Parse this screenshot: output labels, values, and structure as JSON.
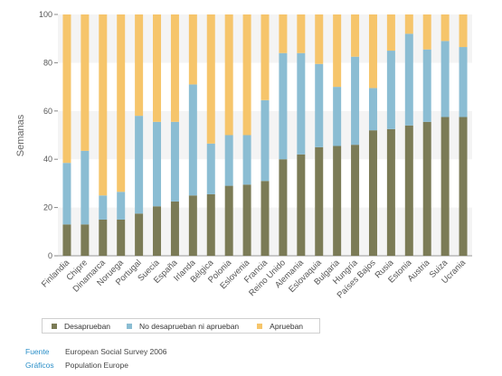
{
  "chart_data": {
    "type": "bar",
    "stacked": true,
    "ylabel": "Semanas",
    "ylim": [
      0,
      100
    ],
    "yticks": [
      0,
      20,
      40,
      60,
      80,
      100
    ],
    "categories": [
      "Finlandia",
      "Chipre",
      "Dinamarca",
      "Noruega",
      "Portugal",
      "Suecia",
      "España",
      "Irlanda",
      "Bélgica",
      "Polonia",
      "Eslovenia",
      "Francia",
      "Reino Unido",
      "Alemania",
      "Eslovaquia",
      "Bulgaria",
      "Hungría",
      "Países Bajos",
      "Rusia",
      "Estonia",
      "Austria",
      "Suiza",
      "Ucrania"
    ],
    "series": [
      {
        "name": "Desaprueban",
        "color": "#7b7b56",
        "values": [
          13,
          13,
          15,
          15,
          17.5,
          20.5,
          22.5,
          25,
          25.5,
          29,
          29.5,
          31,
          40,
          42,
          45,
          45.5,
          46,
          52,
          52.5,
          54,
          55.5,
          57.5,
          57.5
        ]
      },
      {
        "name": "No desaprueban ni aprueban",
        "color": "#8bbdd3",
        "values": [
          25.5,
          30.5,
          10,
          11.5,
          40.5,
          35,
          33,
          46,
          21,
          21,
          20.5,
          33.5,
          44,
          42,
          34.5,
          24.5,
          36.5,
          17.5,
          32.5,
          38,
          30,
          31.5,
          29
        ]
      },
      {
        "name": "Aprueban",
        "color": "#f6c56b",
        "values": [
          61.5,
          56.5,
          75,
          73.5,
          42,
          44.5,
          44.5,
          29,
          53.5,
          50,
          50,
          35.5,
          16,
          16,
          20.5,
          30,
          17.5,
          30.5,
          15,
          8,
          14.5,
          11,
          13.5
        ]
      }
    ],
    "legend_position": "bottom",
    "grid": "alternating bands"
  },
  "footer": {
    "source_label": "Fuente",
    "source_value": "European Social Survey 2006",
    "graphics_label": "Gráficos",
    "graphics_value": "Population Europe"
  }
}
